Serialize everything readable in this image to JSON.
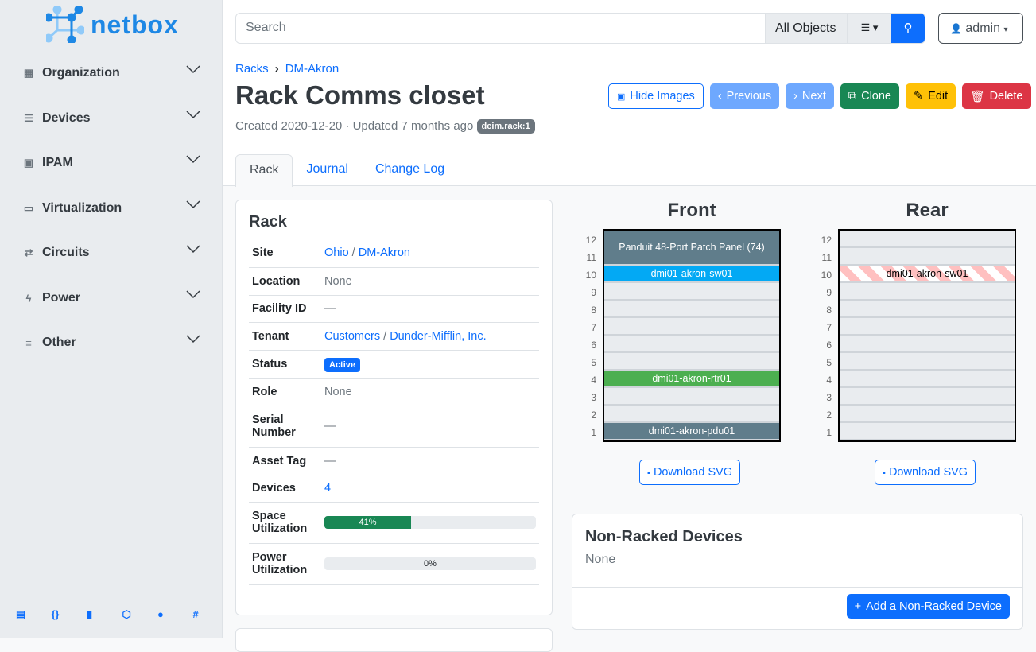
{
  "brand": "netbox",
  "sidebar": {
    "items": [
      {
        "label": "Organization",
        "icon": "building-icon"
      },
      {
        "label": "Devices",
        "icon": "server-icon"
      },
      {
        "label": "IPAM",
        "icon": "ip-icon"
      },
      {
        "label": "Virtualization",
        "icon": "monitor-icon"
      },
      {
        "label": "Circuits",
        "icon": "circuit-icon"
      },
      {
        "label": "Power",
        "icon": "flash-icon"
      },
      {
        "label": "Other",
        "icon": "other-icon"
      }
    ],
    "footer_icons": [
      "docs-book-icon",
      "api-braces-icon",
      "bookmark-icon",
      "graphql-icon",
      "github-icon",
      "slack-icon"
    ]
  },
  "header": {
    "search_placeholder": "Search",
    "object_type": "All Objects",
    "user": "admin"
  },
  "breadcrumb": [
    "Racks",
    "DM-Akron"
  ],
  "page": {
    "title": "Rack Comms closet",
    "meta": "Created 2020-12-20 · Updated 7 months ago",
    "badge": "dcim.rack:1"
  },
  "actions": {
    "hide_images": "Hide Images",
    "previous": "Previous",
    "next": "Next",
    "clone": "Clone",
    "edit": "Edit",
    "delete": "Delete"
  },
  "tabs": [
    "Rack",
    "Journal",
    "Change Log"
  ],
  "rack_card": {
    "title": "Rack",
    "rows": [
      {
        "k": "Site",
        "v": "Ohio",
        "v2": "DM-Akron"
      },
      {
        "k": "Location",
        "v": "None"
      },
      {
        "k": "Facility ID",
        "v": "—"
      },
      {
        "k": "Tenant",
        "v": "Customers",
        "v2": "Dunder-Mifflin, Inc."
      },
      {
        "k": "Status",
        "v": "Active"
      },
      {
        "k": "Role",
        "v": "None"
      },
      {
        "k": "Serial Number",
        "v": "—"
      },
      {
        "k": "Asset Tag",
        "v": "—"
      },
      {
        "k": "Devices",
        "v": "4"
      },
      {
        "k": "Space Utilization",
        "v": "41%",
        "pct": 41
      },
      {
        "k": "Power Utilization",
        "v": "0%",
        "pct": 0
      }
    ]
  },
  "elevation": {
    "front": {
      "title": "Front",
      "devices": [
        {
          "name": "Panduit 48-Port Patch Panel (74)",
          "top": 12,
          "height": 2,
          "color": "#607d8b"
        },
        {
          "name": "dmi01-akron-sw01",
          "top": 10,
          "height": 1,
          "color": "#03a9f4"
        },
        {
          "name": "dmi01-akron-rtr01",
          "top": 4,
          "height": 1,
          "color": "#4caf50"
        },
        {
          "name": "dmi01-akron-pdu01",
          "top": 1,
          "height": 1,
          "color": "#607d8b"
        }
      ]
    },
    "rear": {
      "title": "Rear",
      "devices": [
        {
          "name": "dmi01-akron-sw01",
          "top": 10,
          "height": 1,
          "color": "#ffc0c0"
        }
      ]
    },
    "units": [
      12,
      11,
      10,
      9,
      8,
      7,
      6,
      5,
      4,
      3,
      2,
      1
    ],
    "download": "Download SVG"
  },
  "non_racked": {
    "title": "Non-Racked Devices",
    "body": "None",
    "add": "Add a Non-Racked Device"
  }
}
